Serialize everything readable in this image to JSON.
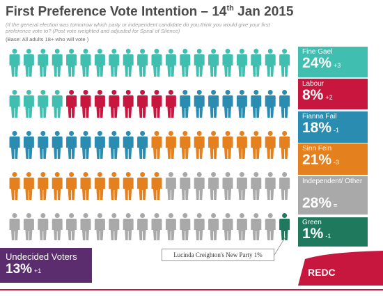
{
  "title_main": "First Preference Vote Intention – 14",
  "title_sup": "th",
  "title_end": " Jan 2015",
  "question": "(If the general election was tomorrow which party or independent candidate do you think you would give your first preference vote to? (Post vote weighted and adjusted for Spiral of Silence)",
  "base": "(Base: All adults 18+ who will vote )",
  "colors": {
    "fine_gael": "#40bfb1",
    "labour": "#c8173f",
    "fianna_fail": "#2a8cb0",
    "sinn_fein": "#e5801e",
    "independent_other": "#a9a9a9",
    "green": "#1f7a5d",
    "undecided": "#5b2d6e",
    "brand_red": "#c8173f"
  },
  "grid": {
    "rows": 5,
    "per_row": 20,
    "sequence": [
      {
        "party": "fine_gael",
        "count": 24
      },
      {
        "party": "labour",
        "count": 8
      },
      {
        "party": "fianna_fail",
        "count": 18
      },
      {
        "party": "sinn_fein",
        "count": 21
      },
      {
        "party": "independent_other",
        "count": 28
      },
      {
        "party": "green",
        "count": 1
      }
    ]
  },
  "cards": {
    "fine_gael": {
      "name": "Fine Gael",
      "pct": "24%",
      "change": "+3"
    },
    "labour": {
      "name": "Labour",
      "pct": "8%",
      "change": "+2"
    },
    "fianna_fail": {
      "name": "Fianna Fail",
      "pct": "18%",
      "change": "-1"
    },
    "sinn_fein": {
      "name": "Sinn Fein",
      "pct": "21%",
      "change": "-3"
    },
    "independent_other": {
      "name": "Independent/ Other",
      "pct": "28%",
      "change": "="
    },
    "green": {
      "name": "Green",
      "pct": "1%",
      "change": "-1"
    }
  },
  "note": "Lucinda Creighton's New Party 1%",
  "undecided": {
    "name": "Undecided Voters",
    "pct": "13%",
    "change": "+1"
  },
  "logo": "REDC",
  "chart_data": {
    "type": "pictograph",
    "title": "First Preference Vote Intention – 14th Jan 2015",
    "categories": [
      "Fine Gael",
      "Labour",
      "Fianna Fail",
      "Sinn Fein",
      "Independent/ Other",
      "Green"
    ],
    "values": [
      24,
      8,
      18,
      21,
      28,
      1
    ],
    "changes": [
      "+3",
      "+2",
      "-1",
      "-3",
      "=",
      "-1"
    ],
    "unit": "%",
    "undecided": {
      "value": 13,
      "change": "+1"
    },
    "annotation": "Lucinda Creighton's New Party 1%"
  }
}
